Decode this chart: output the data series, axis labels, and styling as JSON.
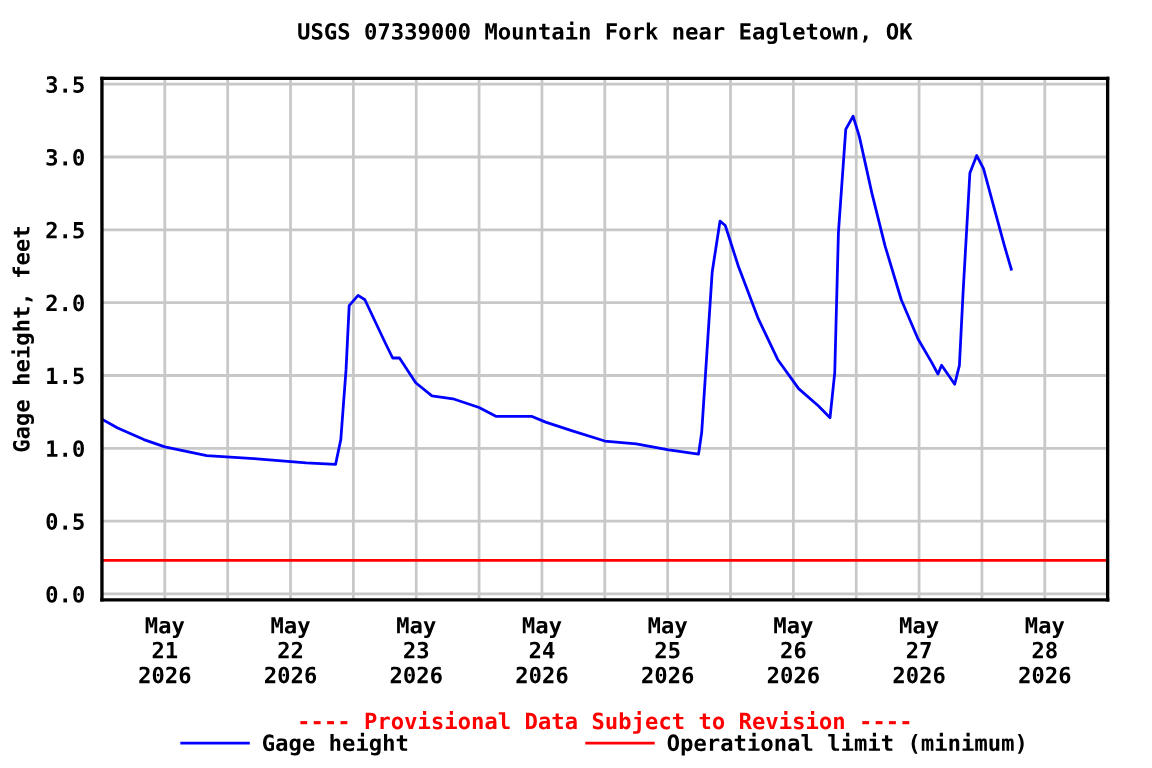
{
  "chart_data": {
    "type": "line",
    "title": "USGS 07339000 Mountain Fork near Eagletown, OK",
    "ylabel": "Gage height, feet",
    "x": [
      "2026-05-21T00:00",
      "2026-05-21T03:00",
      "2026-05-21T08:00",
      "2026-05-21T12:00",
      "2026-05-21T20:00",
      "2026-05-22T05:00",
      "2026-05-22T15:00",
      "2026-05-22T20:36",
      "2026-05-22T21:36",
      "2026-05-22T22:36",
      "2026-05-22T23:12",
      "2026-05-23T00:54",
      "2026-05-23T02:12",
      "2026-05-23T06:00",
      "2026-05-23T07:30",
      "2026-05-23T08:48",
      "2026-05-23T11:54",
      "2026-05-23T15:00",
      "2026-05-23T19:00",
      "2026-05-24T00:00",
      "2026-05-24T03:12",
      "2026-05-24T10:00",
      "2026-05-24T12:42",
      "2026-05-24T17:48",
      "2026-05-25T00:00",
      "2026-05-25T06:00",
      "2026-05-25T12:12",
      "2026-05-25T17:54",
      "2026-05-25T18:30",
      "2026-05-25T19:30",
      "2026-05-25T20:30",
      "2026-05-25T22:00",
      "2026-05-25T23:00",
      "2026-05-26T01:30",
      "2026-05-26T05:18",
      "2026-05-26T09:00",
      "2026-05-26T13:00",
      "2026-05-26T16:48",
      "2026-05-26T19:00",
      "2026-05-26T19:54",
      "2026-05-26T20:36",
      "2026-05-26T22:00",
      "2026-05-26T23:24",
      "2026-05-27T00:36",
      "2026-05-27T03:00",
      "2026-05-27T05:30",
      "2026-05-27T08:36",
      "2026-05-27T11:48",
      "2026-05-27T14:24",
      "2026-05-27T15:36",
      "2026-05-27T16:18",
      "2026-05-27T18:48",
      "2026-05-27T19:42",
      "2026-05-27T20:24",
      "2026-05-27T21:42",
      "2026-05-27T23:00",
      "2026-05-28T00:18",
      "2026-05-28T02:24",
      "2026-05-28T04:18",
      "2026-05-28T05:36"
    ],
    "series": [
      {
        "name": "Gage height",
        "color": "#0000ff",
        "values": [
          1.2,
          1.14,
          1.06,
          1.01,
          0.95,
          0.93,
          0.9,
          0.89,
          1.06,
          1.54,
          1.98,
          2.05,
          2.02,
          1.73,
          1.62,
          1.62,
          1.45,
          1.36,
          1.34,
          1.28,
          1.22,
          1.22,
          1.18,
          1.12,
          1.05,
          1.03,
          0.99,
          0.96,
          1.11,
          1.66,
          2.21,
          2.56,
          2.53,
          2.25,
          1.89,
          1.61,
          1.41,
          1.29,
          1.21,
          1.52,
          2.48,
          3.19,
          3.28,
          3.14,
          2.75,
          2.39,
          2.02,
          1.75,
          1.59,
          1.51,
          1.57,
          1.44,
          1.57,
          2.07,
          2.89,
          3.01,
          2.92,
          2.64,
          2.39,
          2.23
        ]
      }
    ],
    "ref_lines": [
      {
        "axis": "y",
        "value": 0.23,
        "label": "Operational limit (minimum)",
        "color": "#ff0000"
      }
    ],
    "xlim": [
      "2026-05-21",
      "2026-05-29"
    ],
    "xticks": [
      {
        "value": "2026-05-21T12:00",
        "label": "May\n21\n2026"
      },
      {
        "value": "2026-05-22T12:00",
        "label": "May\n22\n2026"
      },
      {
        "value": "2026-05-23T12:00",
        "label": "May\n23\n2026"
      },
      {
        "value": "2026-05-24T12:00",
        "label": "May\n24\n2026"
      },
      {
        "value": "2026-05-25T12:00",
        "label": "May\n25\n2026"
      },
      {
        "value": "2026-05-26T12:00",
        "label": "May\n26\n2026"
      },
      {
        "value": "2026-05-27T12:00",
        "label": "May\n27\n2026"
      },
      {
        "value": "2026-05-28T12:00",
        "label": "May\n28\n2026"
      },
      {
        "value": "2026-05-22",
        "label": null
      },
      {
        "value": "2026-05-23",
        "label": null
      },
      {
        "value": "2026-05-24",
        "label": null
      },
      {
        "value": "2026-05-25",
        "label": null
      },
      {
        "value": "2026-05-26",
        "label": null
      },
      {
        "value": "2026-05-27",
        "label": null
      },
      {
        "value": "2026-05-28",
        "label": null
      }
    ],
    "ylim": [
      -0.04,
      3.54
    ],
    "yticks": [
      {
        "value": 0,
        "label": "0.0"
      },
      {
        "value": 0.5,
        "label": "0.5"
      },
      {
        "value": 1,
        "label": "1.0"
      },
      {
        "value": 1.5,
        "label": "1.5"
      },
      {
        "value": 2,
        "label": "2.0"
      },
      {
        "value": 2.5,
        "label": "2.5"
      },
      {
        "value": 3,
        "label": "3.0"
      },
      {
        "value": 3.5,
        "label": "3.5"
      }
    ],
    "grid": true,
    "legend": "bottom",
    "marker": "none",
    "line_style": "solid",
    "annotations": [
      "---- Provisional Data Subject to Revision ----"
    ]
  }
}
